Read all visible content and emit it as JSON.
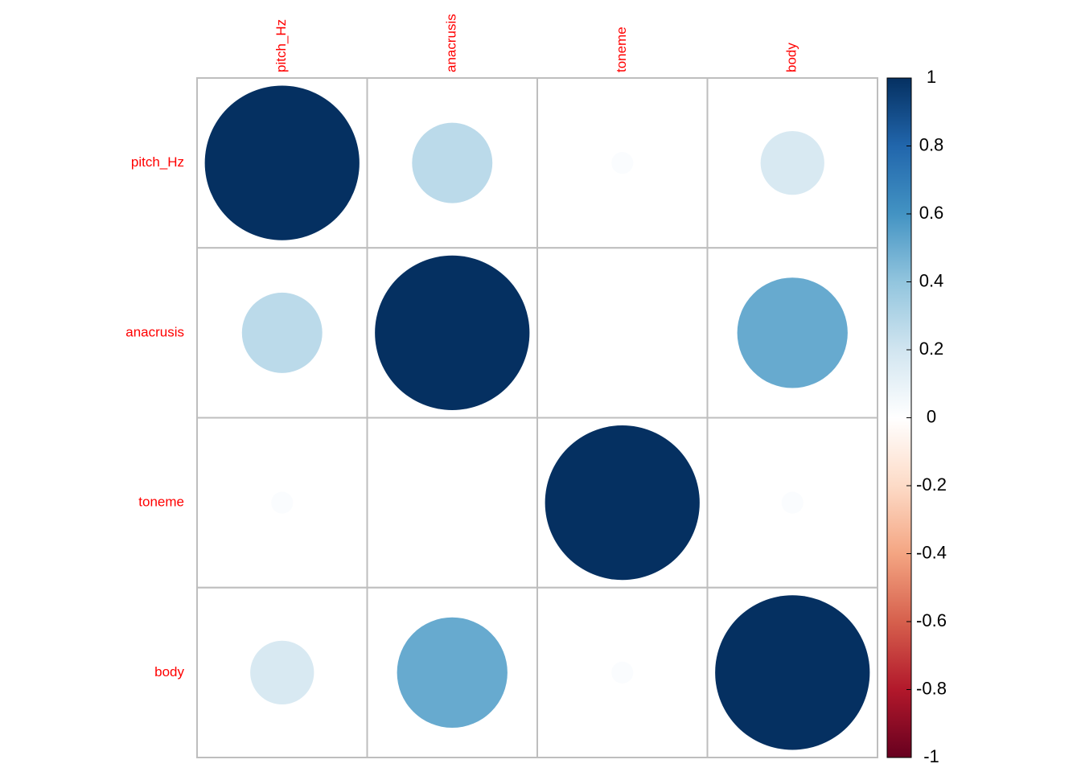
{
  "chart_data": {
    "type": "corrplot",
    "variables": [
      "pitch_Hz",
      "anacrusis",
      "toneme",
      "body"
    ],
    "matrix": [
      [
        1,
        0.27,
        0.02,
        0.17
      ],
      [
        0.27,
        1,
        0,
        0.51
      ],
      [
        0.02,
        0,
        1,
        0.02
      ],
      [
        0.17,
        0.51,
        0.02,
        1
      ]
    ],
    "colors": [
      "#67001F",
      "#B2182B",
      "#D6604D",
      "#F4A582",
      "#FDDBC7",
      "#FFFFFF",
      "#D1E5F0",
      "#92C5DE",
      "#4393C3",
      "#2166AC",
      "#053061"
    ],
    "ylim": [
      -1,
      1
    ],
    "yticks": [
      -1,
      -0.8,
      -0.6,
      -0.4,
      -0.2,
      0,
      0.2,
      0.4,
      0.6,
      0.8,
      1
    ],
    "label_color": "#FF0000",
    "grid_color": "#BEBEBE"
  }
}
